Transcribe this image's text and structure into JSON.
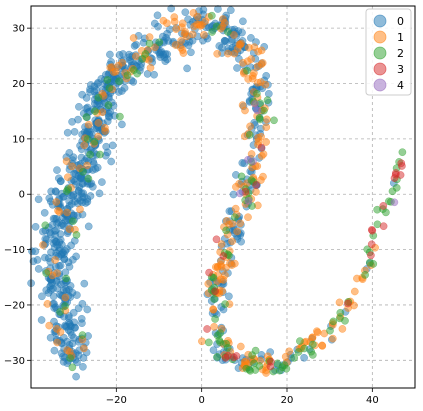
{
  "chart_data": {
    "type": "scatter",
    "title": "",
    "xlabel": "",
    "ylabel": "",
    "xlim": [
      -40,
      50
    ],
    "ylim": [
      -35,
      34
    ],
    "x_ticks": [
      -20,
      0,
      20,
      40
    ],
    "y_ticks": [
      -30,
      -20,
      -10,
      0,
      10,
      20,
      30
    ],
    "x_tick_labels": [
      "−20",
      "0",
      "20",
      "40"
    ],
    "y_tick_labels": [
      "−30",
      "−20",
      "−10",
      "0",
      "10",
      "20",
      "30"
    ],
    "grid": true,
    "grid_style": "dashed",
    "legend_position": "top-right",
    "marker_alpha": 0.5,
    "series": [
      {
        "name": "0",
        "color": "#1f77b4"
      },
      {
        "name": "1",
        "color": "#ff7f0e"
      },
      {
        "name": "2",
        "color": "#2ca02c"
      },
      {
        "name": "3",
        "color": "#d62728"
      },
      {
        "name": "4",
        "color": "#9467bd"
      }
    ],
    "curve": [
      [
        -30,
        -30
      ],
      [
        -31,
        -25
      ],
      [
        -33,
        -18
      ],
      [
        -35,
        -12
      ],
      [
        -34,
        -5
      ],
      [
        -30,
        0
      ],
      [
        -28,
        5
      ],
      [
        -25,
        10
      ],
      [
        -24,
        15
      ],
      [
        -22,
        20
      ],
      [
        -18,
        23
      ],
      [
        -12,
        26
      ],
      [
        -6,
        28
      ],
      [
        0,
        31
      ],
      [
        6,
        29
      ],
      [
        10,
        26
      ],
      [
        13,
        20
      ],
      [
        14,
        14
      ],
      [
        12,
        6
      ],
      [
        10,
        0
      ],
      [
        7,
        -6
      ],
      [
        5,
        -12
      ],
      [
        3,
        -18
      ],
      [
        3,
        -23
      ],
      [
        5,
        -28
      ],
      [
        10,
        -30
      ],
      [
        15,
        -31
      ],
      [
        20,
        -30
      ],
      [
        26,
        -27
      ],
      [
        32,
        -24
      ],
      [
        36,
        -18
      ],
      [
        40,
        -10
      ],
      [
        43,
        -3
      ],
      [
        46,
        3
      ],
      [
        47,
        8
      ]
    ],
    "curve_class_mix": [
      [
        0.86,
        0.1,
        0.04,
        0.0,
        0.0
      ],
      [
        0.86,
        0.1,
        0.04,
        0.0,
        0.0
      ],
      [
        0.86,
        0.1,
        0.04,
        0.0,
        0.0
      ],
      [
        0.86,
        0.1,
        0.04,
        0.0,
        0.0
      ],
      [
        0.86,
        0.1,
        0.04,
        0.0,
        0.0
      ],
      [
        0.86,
        0.1,
        0.04,
        0.0,
        0.0
      ],
      [
        0.86,
        0.1,
        0.04,
        0.0,
        0.0
      ],
      [
        0.86,
        0.1,
        0.04,
        0.0,
        0.0
      ],
      [
        0.86,
        0.1,
        0.04,
        0.0,
        0.0
      ],
      [
        0.86,
        0.1,
        0.04,
        0.0,
        0.0
      ],
      [
        0.78,
        0.18,
        0.04,
        0.0,
        0.0
      ],
      [
        0.78,
        0.18,
        0.04,
        0.0,
        0.0
      ],
      [
        0.7,
        0.24,
        0.06,
        0.0,
        0.0
      ],
      [
        0.65,
        0.3,
        0.05,
        0.0,
        0.0
      ],
      [
        0.6,
        0.32,
        0.07,
        0.01,
        0.0
      ],
      [
        0.55,
        0.33,
        0.09,
        0.02,
        0.01
      ],
      [
        0.55,
        0.33,
        0.09,
        0.02,
        0.01
      ],
      [
        0.5,
        0.35,
        0.12,
        0.02,
        0.01
      ],
      [
        0.5,
        0.35,
        0.12,
        0.02,
        0.01
      ],
      [
        0.5,
        0.35,
        0.12,
        0.02,
        0.01
      ],
      [
        0.45,
        0.4,
        0.13,
        0.02,
        0.0
      ],
      [
        0.45,
        0.4,
        0.13,
        0.02,
        0.0
      ],
      [
        0.4,
        0.42,
        0.15,
        0.03,
        0.0
      ],
      [
        0.35,
        0.45,
        0.17,
        0.03,
        0.0
      ],
      [
        0.3,
        0.48,
        0.19,
        0.03,
        0.0
      ],
      [
        0.25,
        0.5,
        0.22,
        0.03,
        0.0
      ],
      [
        0.22,
        0.5,
        0.24,
        0.04,
        0.0
      ],
      [
        0.2,
        0.45,
        0.3,
        0.05,
        0.0
      ],
      [
        0.15,
        0.4,
        0.38,
        0.07,
        0.0
      ],
      [
        0.12,
        0.35,
        0.43,
        0.1,
        0.0
      ],
      [
        0.1,
        0.3,
        0.45,
        0.15,
        0.0
      ],
      [
        0.08,
        0.25,
        0.42,
        0.25,
        0.0
      ],
      [
        0.05,
        0.2,
        0.35,
        0.35,
        0.05
      ],
      [
        0.03,
        0.12,
        0.2,
        0.45,
        0.2
      ],
      [
        0.0,
        0.05,
        0.1,
        0.45,
        0.4
      ]
    ],
    "curve_spread": [
      3.0,
      3.0,
      3.2,
      3.2,
      3.3,
      3.2,
      3.2,
      3.2,
      2.8,
      2.8,
      2.8,
      2.8,
      2.8,
      2.8,
      2.6,
      2.5,
      2.4,
      2.4,
      2.3,
      2.3,
      2.2,
      2.2,
      2.0,
      1.8,
      1.8,
      1.6,
      1.4,
      1.3,
      1.2,
      1.1,
      1.0,
      0.9,
      0.8,
      0.7,
      0.6
    ],
    "curve_density": [
      55,
      50,
      55,
      60,
      60,
      55,
      55,
      55,
      50,
      45,
      45,
      45,
      40,
      40,
      40,
      35,
      35,
      35,
      35,
      30,
      30,
      30,
      25,
      25,
      25,
      22,
      22,
      20,
      16,
      14,
      12,
      10,
      10,
      8,
      6
    ],
    "point_count": 1200
  }
}
